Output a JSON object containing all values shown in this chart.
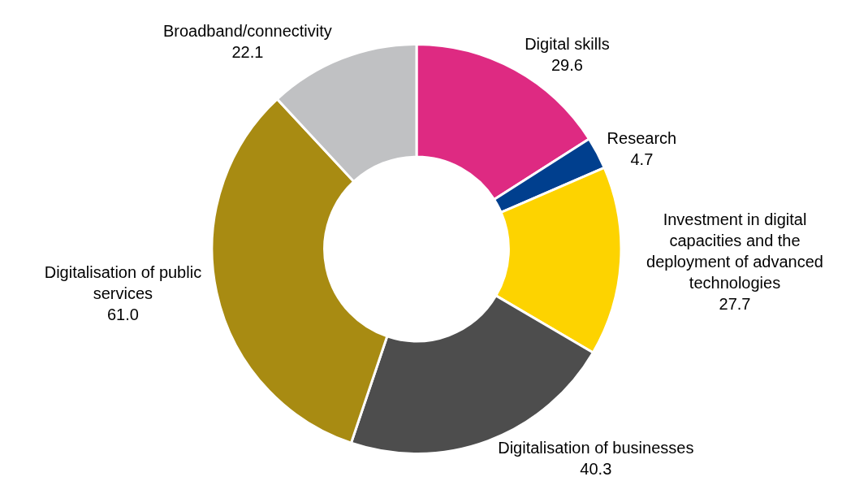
{
  "chart_data": {
    "type": "donut",
    "categories": [
      "Digital skills",
      "Research",
      "Investment in digital capacities and the deployment of advanced technologies",
      "Digitalisation of businesses",
      "Digitalisation of public services",
      "Broadband/connectivity"
    ],
    "values": [
      29.6,
      4.7,
      27.7,
      40.3,
      61.0,
      22.1
    ],
    "value_labels": [
      "29.6",
      "4.7",
      "27.7",
      "40.3",
      "61.0",
      "22.1"
    ],
    "colors": [
      "#de2a82",
      "#003f8e",
      "#fdd300",
      "#4d4d4d",
      "#a88b12",
      "#c0c1c3"
    ],
    "legend": false
  }
}
